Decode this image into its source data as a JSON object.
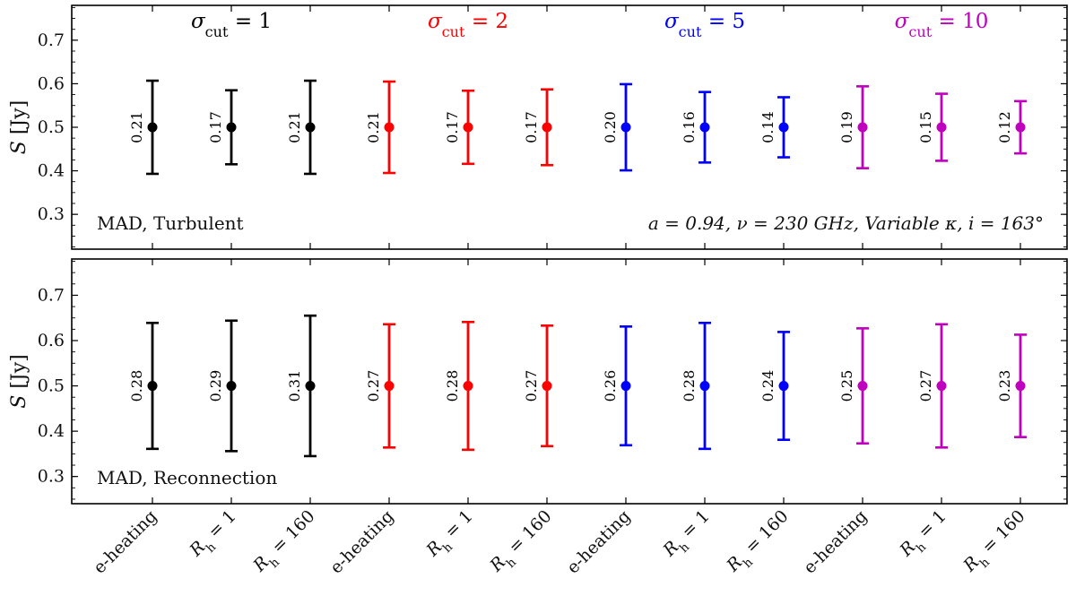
{
  "colors": {
    "black": "#000000",
    "red": "#ff0000",
    "blue": "#0000ff",
    "magenta": "#bf00bf"
  },
  "chart_data": [
    {
      "type": "errorbar",
      "panel": "top",
      "ylabel": "S [Jy]",
      "ylim": [
        0.22,
        0.78
      ],
      "yticks": [
        0.3,
        0.4,
        0.5,
        0.6,
        0.7
      ],
      "ytick_labels": [
        "0.3",
        "0.4",
        "0.5",
        "0.6",
        "0.7"
      ],
      "annotation_left": "MAD, Turbulent",
      "annotation_right": "a = 0.94, ν = 230 GHz, Variable κ, i = 163°",
      "groups": [
        {
          "label": "σcut = 1",
          "color": "#000000"
        },
        {
          "label": "σcut = 2",
          "color": "#ff0000"
        },
        {
          "label": "σcut = 5",
          "color": "#0000ff"
        },
        {
          "label": "σcut = 10",
          "color": "#bf00bf"
        }
      ],
      "points": [
        {
          "x": "e-heating",
          "group": 0,
          "y": 0.5,
          "err": 0.107,
          "label": "0.21"
        },
        {
          "x": "Rh = 1",
          "group": 0,
          "y": 0.5,
          "err": 0.085,
          "label": "0.17"
        },
        {
          "x": "Rh = 160",
          "group": 0,
          "y": 0.5,
          "err": 0.107,
          "label": "0.21"
        },
        {
          "x": "e-heating",
          "group": 1,
          "y": 0.5,
          "err": 0.105,
          "label": "0.21"
        },
        {
          "x": "Rh = 1",
          "group": 1,
          "y": 0.5,
          "err": 0.084,
          "label": "0.17"
        },
        {
          "x": "Rh = 160",
          "group": 1,
          "y": 0.5,
          "err": 0.087,
          "label": "0.17"
        },
        {
          "x": "e-heating",
          "group": 2,
          "y": 0.5,
          "err": 0.099,
          "label": "0.20"
        },
        {
          "x": "Rh = 1",
          "group": 2,
          "y": 0.5,
          "err": 0.081,
          "label": "0.16"
        },
        {
          "x": "Rh = 160",
          "group": 2,
          "y": 0.5,
          "err": 0.069,
          "label": "0.14"
        },
        {
          "x": "e-heating",
          "group": 3,
          "y": 0.5,
          "err": 0.094,
          "label": "0.19"
        },
        {
          "x": "Rh = 1",
          "group": 3,
          "y": 0.5,
          "err": 0.077,
          "label": "0.15"
        },
        {
          "x": "Rh = 160",
          "group": 3,
          "y": 0.5,
          "err": 0.06,
          "label": "0.12"
        }
      ]
    },
    {
      "type": "errorbar",
      "panel": "bottom",
      "ylabel": "S [Jy]",
      "ylim": [
        0.24,
        0.78
      ],
      "yticks": [
        0.3,
        0.4,
        0.5,
        0.6,
        0.7
      ],
      "ytick_labels": [
        "0.3",
        "0.4",
        "0.5",
        "0.6",
        "0.7"
      ],
      "annotation_left": "MAD, Reconnection",
      "groups": [
        {
          "label": "σcut = 1",
          "color": "#000000"
        },
        {
          "label": "σcut = 2",
          "color": "#ff0000"
        },
        {
          "label": "σcut = 5",
          "color": "#0000ff"
        },
        {
          "label": "σcut = 10",
          "color": "#bf00bf"
        }
      ],
      "points": [
        {
          "x": "e-heating",
          "group": 0,
          "y": 0.5,
          "err": 0.139,
          "label": "0.28"
        },
        {
          "x": "Rh = 1",
          "group": 0,
          "y": 0.5,
          "err": 0.144,
          "label": "0.29"
        },
        {
          "x": "Rh = 160",
          "group": 0,
          "y": 0.5,
          "err": 0.155,
          "label": "0.31"
        },
        {
          "x": "e-heating",
          "group": 1,
          "y": 0.5,
          "err": 0.136,
          "label": "0.27"
        },
        {
          "x": "Rh = 1",
          "group": 1,
          "y": 0.5,
          "err": 0.141,
          "label": "0.28"
        },
        {
          "x": "Rh = 160",
          "group": 1,
          "y": 0.5,
          "err": 0.133,
          "label": "0.27"
        },
        {
          "x": "e-heating",
          "group": 2,
          "y": 0.5,
          "err": 0.131,
          "label": "0.26"
        },
        {
          "x": "Rh = 1",
          "group": 2,
          "y": 0.5,
          "err": 0.139,
          "label": "0.28"
        },
        {
          "x": "Rh = 160",
          "group": 2,
          "y": 0.5,
          "err": 0.119,
          "label": "0.24"
        },
        {
          "x": "e-heating",
          "group": 3,
          "y": 0.5,
          "err": 0.127,
          "label": "0.25"
        },
        {
          "x": "Rh = 1",
          "group": 3,
          "y": 0.5,
          "err": 0.136,
          "label": "0.27"
        },
        {
          "x": "Rh = 160",
          "group": 3,
          "y": 0.5,
          "err": 0.113,
          "label": "0.23"
        }
      ]
    }
  ],
  "xtick_labels": [
    "e-heating",
    "Rh = 1",
    "Rh = 160",
    "e-heating",
    "Rh = 1",
    "Rh = 160",
    "e-heating",
    "Rh = 1",
    "Rh = 160",
    "e-heating",
    "Rh = 1",
    "Rh = 160"
  ]
}
